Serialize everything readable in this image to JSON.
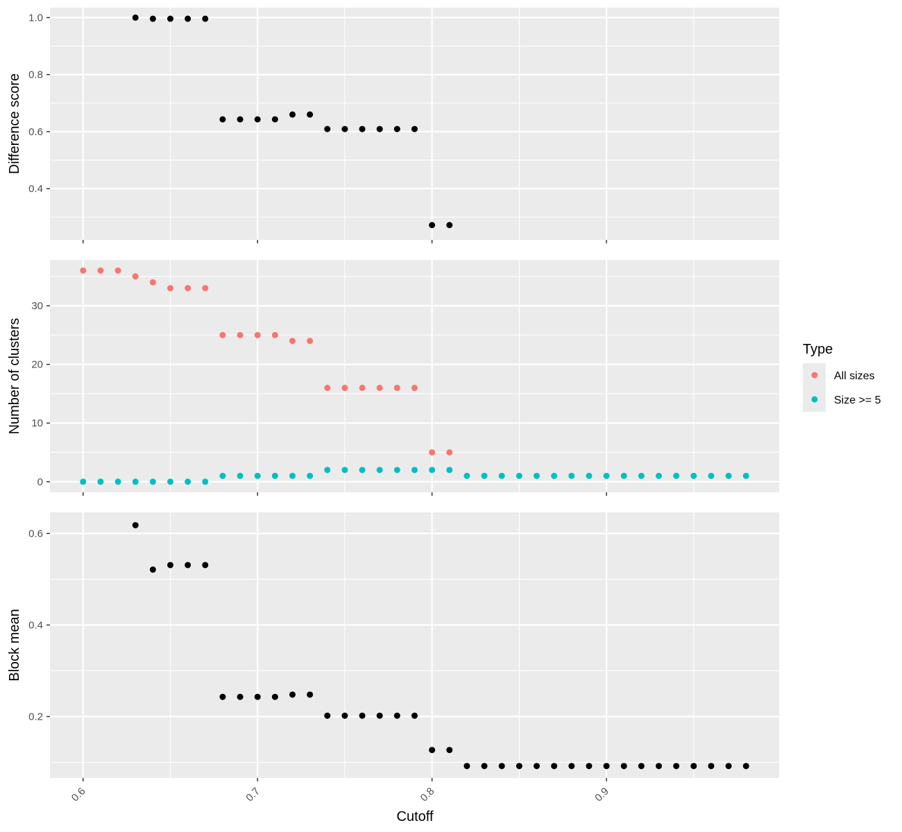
{
  "chart_data": {
    "type": "scatter",
    "xlabel": "Cutoff",
    "xlim": [
      0.581,
      0.999
    ],
    "x_ticks": [
      0.6,
      0.7,
      0.8,
      0.9
    ],
    "x_tick_labels": [
      "0.6",
      "0.7",
      "0.8",
      "0.9"
    ],
    "grid": true,
    "legend_position": "right",
    "legend": {
      "title": "Type",
      "entries": [
        {
          "label": "All sizes",
          "color": "#F8766D"
        },
        {
          "label": "Size >= 5",
          "color": "#00BFC4"
        }
      ]
    },
    "panels": [
      {
        "ylabel": "Difference score",
        "ylim": [
          0.22,
          1.035
        ],
        "y_ticks": [
          0.4,
          0.6,
          0.8,
          1.0
        ],
        "y_tick_labels": [
          "0.4",
          "0.6",
          "0.8",
          "1.0"
        ],
        "series": [
          {
            "color": "#000000",
            "x": [
              0.63,
              0.64,
              0.65,
              0.66,
              0.67,
              0.68,
              0.69,
              0.7,
              0.71,
              0.72,
              0.73,
              0.74,
              0.75,
              0.76,
              0.77,
              0.78,
              0.79,
              0.8,
              0.81
            ],
            "y": [
              1.0,
              0.996,
              0.996,
              0.996,
              0.996,
              0.643,
              0.643,
              0.643,
              0.643,
              0.66,
              0.66,
              0.609,
              0.609,
              0.609,
              0.609,
              0.609,
              0.609,
              0.272,
              0.272
            ]
          }
        ]
      },
      {
        "ylabel": "Number of clusters",
        "ylim": [
          -1.8,
          37.8
        ],
        "y_ticks": [
          0,
          10,
          20,
          30
        ],
        "y_tick_labels": [
          "0",
          "10",
          "20",
          "30"
        ],
        "series": [
          {
            "name": "All sizes",
            "color": "#F8766D",
            "x": [
              0.6,
              0.61,
              0.62,
              0.63,
              0.64,
              0.65,
              0.66,
              0.67,
              0.68,
              0.69,
              0.7,
              0.71,
              0.72,
              0.73,
              0.74,
              0.75,
              0.76,
              0.77,
              0.78,
              0.79,
              0.8,
              0.81
            ],
            "y": [
              36,
              36,
              36,
              35,
              34,
              33,
              33,
              33,
              25,
              25,
              25,
              25,
              24,
              24,
              16,
              16,
              16,
              16,
              16,
              16,
              5,
              5
            ]
          },
          {
            "name": "Size >= 5",
            "color": "#00BFC4",
            "x": [
              0.6,
              0.61,
              0.62,
              0.63,
              0.64,
              0.65,
              0.66,
              0.67,
              0.68,
              0.69,
              0.7,
              0.71,
              0.72,
              0.73,
              0.74,
              0.75,
              0.76,
              0.77,
              0.78,
              0.79,
              0.8,
              0.81,
              0.82,
              0.83,
              0.84,
              0.85,
              0.86,
              0.87,
              0.88,
              0.89,
              0.9,
              0.91,
              0.92,
              0.93,
              0.94,
              0.95,
              0.96,
              0.97,
              0.98
            ],
            "y": [
              0,
              0,
              0,
              0,
              0,
              0,
              0,
              0,
              1,
              1,
              1,
              1,
              1,
              1,
              2,
              2,
              2,
              2,
              2,
              2,
              2,
              2,
              1,
              1,
              1,
              1,
              1,
              1,
              1,
              1,
              1,
              1,
              1,
              1,
              1,
              1,
              1,
              1,
              1
            ]
          }
        ]
      },
      {
        "ylabel": "Block mean",
        "ylim": [
          0.066,
          0.646
        ],
        "y_ticks": [
          0.2,
          0.4,
          0.6
        ],
        "y_tick_labels": [
          "0.2",
          "0.4",
          "0.6"
        ],
        "series": [
          {
            "color": "#000000",
            "x": [
              0.63,
              0.64,
              0.65,
              0.66,
              0.67,
              0.68,
              0.69,
              0.7,
              0.71,
              0.72,
              0.73,
              0.74,
              0.75,
              0.76,
              0.77,
              0.78,
              0.79,
              0.8,
              0.81,
              0.82,
              0.83,
              0.84,
              0.85,
              0.86,
              0.87,
              0.88,
              0.89,
              0.9,
              0.91,
              0.92,
              0.93,
              0.94,
              0.95,
              0.96,
              0.97,
              0.98
            ],
            "y": [
              0.618,
              0.521,
              0.531,
              0.531,
              0.531,
              0.243,
              0.243,
              0.243,
              0.243,
              0.248,
              0.248,
              0.202,
              0.202,
              0.202,
              0.202,
              0.202,
              0.202,
              0.127,
              0.127,
              0.092,
              0.092,
              0.092,
              0.092,
              0.092,
              0.092,
              0.092,
              0.092,
              0.092,
              0.092,
              0.092,
              0.092,
              0.092,
              0.092,
              0.092,
              0.092,
              0.092
            ]
          }
        ]
      }
    ]
  }
}
